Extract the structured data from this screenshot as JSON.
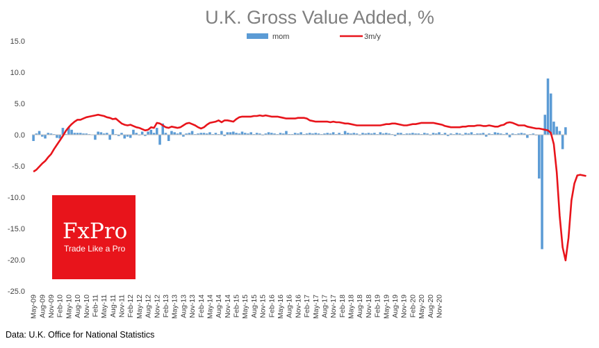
{
  "chart_data": {
    "type": "bar+line",
    "title": "U.K. Gross Value Added, %",
    "legend_placement": "top-center",
    "ylim": [
      -25,
      15
    ],
    "yticks": [
      "15.0",
      "10.0",
      "5.0",
      "0.0",
      "-5.0",
      "-10.0",
      "-15.0",
      "-20.0",
      "-25.0"
    ],
    "ytick_values": [
      15,
      10,
      5,
      0,
      -5,
      -10,
      -15,
      -20,
      -25
    ],
    "x_start": "May-09",
    "xtick_labels": [
      "May-09",
      "Aug-09",
      "Nov-09",
      "Feb-10",
      "May-10",
      "Aug-10",
      "Nov-10",
      "Feb-11",
      "May-11",
      "Aug-11",
      "Nov-11",
      "Feb-12",
      "May-12",
      "Aug-12",
      "Nov-12",
      "Feb-13",
      "May-13",
      "Aug-13",
      "Nov-13",
      "Feb-14",
      "May-14",
      "Aug-14",
      "Nov-14",
      "Feb-15",
      "May-15",
      "Aug-15",
      "Nov-15",
      "Feb-16",
      "May-16",
      "Aug-16",
      "Nov-16",
      "Feb-17",
      "May-17",
      "Aug-17",
      "Nov-17",
      "Feb-18",
      "May-18",
      "Aug-18",
      "Nov-18",
      "Feb-19",
      "May-19",
      "Aug-19",
      "Nov-19",
      "Feb-20",
      "May-20",
      "Aug-20",
      "Nov-20"
    ],
    "series": [
      {
        "name": "mom",
        "kind": "bar",
        "color": "#5b9bd5",
        "values": [
          -1.0,
          0.2,
          0.6,
          -0.3,
          -0.6,
          0.3,
          0.2,
          0.1,
          -0.5,
          -0.6,
          1.1,
          0.1,
          1.2,
          0.8,
          0.3,
          0.3,
          0.3,
          0.2,
          0.2,
          0.1,
          0.0,
          -0.8,
          0.5,
          0.4,
          0.2,
          0.3,
          -0.8,
          0.9,
          0.1,
          -0.2,
          0.3,
          -0.6,
          -0.3,
          -0.5,
          0.8,
          0.3,
          -0.1,
          0.5,
          -0.2,
          0.5,
          0.8,
          0.3,
          1.1,
          -1.6,
          1.8,
          0.3,
          -1.0,
          0.6,
          0.4,
          0.2,
          0.4,
          -0.3,
          0.2,
          0.3,
          0.6,
          0.1,
          0.2,
          0.3,
          0.3,
          0.2,
          0.4,
          0.1,
          0.3,
          0.1,
          0.6,
          -0.2,
          0.4,
          0.4,
          0.5,
          0.3,
          0.2,
          0.5,
          0.3,
          0.2,
          0.4,
          0.1,
          0.3,
          0.2,
          -0.1,
          0.2,
          0.4,
          0.3,
          0.2,
          0.1,
          0.3,
          0.2,
          0.6,
          0.1,
          0.1,
          0.3,
          0.2,
          0.4,
          0.1,
          0.2,
          0.3,
          0.2,
          0.3,
          0.2,
          0.1,
          0.2,
          0.3,
          0.2,
          0.4,
          0.1,
          0.3,
          0.1,
          0.6,
          0.3,
          0.2,
          0.3,
          0.2,
          -0.1,
          0.3,
          0.2,
          0.3,
          0.2,
          0.3,
          0.1,
          0.4,
          0.2,
          0.3,
          0.2,
          0.1,
          -0.2,
          0.3,
          0.3,
          0.1,
          0.2,
          0.2,
          0.3,
          0.2,
          0.2,
          0.1,
          0.3,
          0.2,
          -0.1,
          0.3,
          0.2,
          0.4,
          0.1,
          0.3,
          -0.2,
          0.2,
          0.1,
          0.3,
          0.2,
          -0.1,
          0.3,
          0.2,
          0.4,
          0.1,
          0.2,
          0.2,
          0.3,
          -0.3,
          0.2,
          0.1,
          0.4,
          0.3,
          0.2,
          0.1,
          0.3,
          -0.4,
          0.2,
          0.1,
          0.2,
          0.3,
          0.2,
          -0.5,
          0.1,
          0.2,
          -0.1,
          -7.0,
          -18.3,
          3.2,
          9.0,
          6.6,
          2.1,
          1.3,
          0.6,
          -2.3,
          1.2
        ]
      },
      {
        "name": "3m/y",
        "kind": "line",
        "color": "#e8141b",
        "values": [
          -5.9,
          -5.6,
          -5.1,
          -4.6,
          -4.2,
          -3.6,
          -3.1,
          -2.3,
          -1.6,
          -0.9,
          -0.2,
          0.6,
          1.2,
          1.7,
          2.1,
          2.4,
          2.4,
          2.6,
          2.8,
          2.9,
          3.0,
          3.1,
          3.2,
          3.1,
          3.0,
          2.8,
          2.7,
          2.5,
          2.6,
          2.2,
          1.8,
          1.6,
          1.5,
          1.6,
          1.4,
          1.2,
          1.1,
          0.9,
          0.7,
          0.8,
          1.2,
          1.1,
          1.9,
          1.8,
          1.5,
          1.2,
          1.1,
          1.3,
          1.2,
          1.1,
          1.2,
          1.5,
          1.8,
          1.9,
          1.7,
          1.5,
          1.2,
          1.0,
          1.2,
          1.6,
          1.9,
          2.0,
          2.1,
          2.3,
          2.0,
          2.3,
          2.3,
          2.2,
          2.1,
          2.5,
          2.8,
          2.9,
          2.9,
          2.9,
          2.9,
          3.0,
          3.0,
          3.1,
          3.0,
          3.1,
          3.0,
          2.9,
          2.9,
          2.9,
          2.8,
          2.7,
          2.6,
          2.6,
          2.6,
          2.6,
          2.7,
          2.7,
          2.7,
          2.6,
          2.3,
          2.2,
          2.1,
          2.1,
          2.1,
          2.1,
          2.1,
          2.0,
          2.1,
          2.0,
          2.0,
          1.9,
          1.8,
          1.8,
          1.7,
          1.6,
          1.5,
          1.5,
          1.5,
          1.5,
          1.5,
          1.5,
          1.5,
          1.5,
          1.5,
          1.6,
          1.7,
          1.7,
          1.8,
          1.8,
          1.7,
          1.6,
          1.5,
          1.5,
          1.6,
          1.7,
          1.7,
          1.8,
          1.9,
          1.9,
          1.9,
          1.9,
          1.9,
          1.8,
          1.7,
          1.6,
          1.4,
          1.3,
          1.2,
          1.2,
          1.2,
          1.2,
          1.3,
          1.3,
          1.4,
          1.4,
          1.4,
          1.5,
          1.5,
          1.4,
          1.4,
          1.5,
          1.4,
          1.3,
          1.3,
          1.5,
          1.6,
          1.9,
          2.0,
          1.9,
          1.7,
          1.5,
          1.5,
          1.5,
          1.3,
          1.2,
          1.1,
          1.0,
          1.0,
          0.9,
          0.8,
          0.7,
          0.3,
          -1.5,
          -6.0,
          -13.0,
          -18.0,
          -20.1,
          -16.5,
          -10.5,
          -7.8,
          -6.5,
          -6.4,
          -6.5,
          -6.6
        ]
      }
    ]
  },
  "logo": {
    "name": "FxPro",
    "tagline": "Trade Like a Pro",
    "bg_color": "#e8141b",
    "icon": "fxpro-logo"
  },
  "source": "Data: U.K. Office for National Statistics"
}
